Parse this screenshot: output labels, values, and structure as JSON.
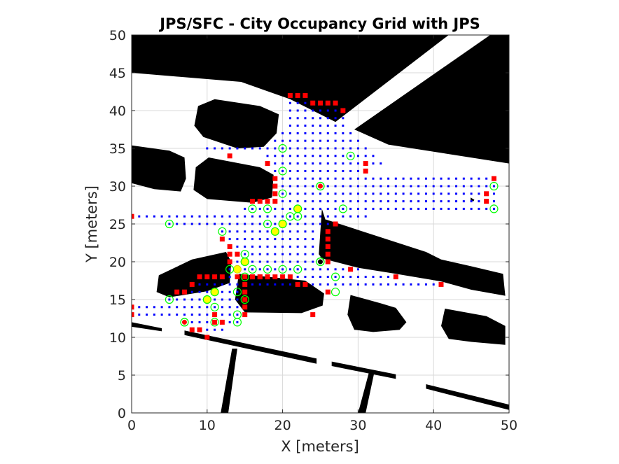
{
  "chart_data": {
    "type": "scatter",
    "title": "JPS/SFC - City Occupancy Grid with JPS",
    "xlabel": "X [meters]",
    "ylabel": "Y [meters]",
    "xlim": [
      0,
      50
    ],
    "ylim": [
      0,
      50
    ],
    "xticks": [
      0,
      10,
      20,
      30,
      40,
      50
    ],
    "yticks": [
      0,
      5,
      10,
      15,
      20,
      25,
      30,
      35,
      40,
      45,
      50
    ],
    "grid": true,
    "colors": {
      "obstacle": "#000000",
      "free": "#ffffff",
      "explored": "#0000ff",
      "frontier": "#ff0000",
      "jump_point": "#00ff00",
      "path": "#ffff00",
      "endpoint": "#ff0000"
    },
    "obstacles": [
      [
        [
          0,
          45
        ],
        [
          14.5,
          43.8
        ],
        [
          21,
          41.5
        ],
        [
          27,
          38.5
        ],
        [
          42,
          50
        ],
        [
          0,
          50
        ]
      ],
      [
        [
          29.5,
          37.5
        ],
        [
          47.5,
          50
        ],
        [
          50,
          50
        ],
        [
          50,
          50
        ],
        [
          50,
          33
        ],
        [
          34,
          35.5
        ]
      ],
      [
        [
          0,
          35.4
        ],
        [
          5,
          34.7
        ],
        [
          7,
          33.8
        ],
        [
          7.2,
          31
        ],
        [
          6.5,
          29.3
        ],
        [
          3,
          29.6
        ],
        [
          0,
          30.4
        ]
      ],
      [
        [
          8.8,
          40.6
        ],
        [
          11,
          41.5
        ],
        [
          17,
          40.6
        ],
        [
          19.5,
          39.5
        ],
        [
          19.2,
          37
        ],
        [
          17.5,
          35.2
        ],
        [
          14,
          35
        ],
        [
          9.5,
          36.5
        ],
        [
          8.3,
          38
        ]
      ],
      [
        [
          8.5,
          32.5
        ],
        [
          10.2,
          33.8
        ],
        [
          17,
          32.5
        ],
        [
          18.8,
          31.5
        ],
        [
          18.6,
          28.5
        ],
        [
          16,
          27.8
        ],
        [
          10,
          28.3
        ],
        [
          8.2,
          29.5
        ]
      ],
      [
        [
          3.6,
          18.2
        ],
        [
          8,
          20.3
        ],
        [
          12.5,
          21.3
        ],
        [
          13.2,
          20
        ],
        [
          13,
          17.2
        ],
        [
          10,
          16.1
        ],
        [
          5,
          15.3
        ],
        [
          3.3,
          16
        ]
      ],
      [
        [
          25.7,
          25.6
        ],
        [
          39,
          21.3
        ],
        [
          41,
          20.3
        ],
        [
          45,
          19.4
        ],
        [
          49.2,
          18.4
        ],
        [
          49.5,
          15.5
        ],
        [
          45,
          16.3
        ],
        [
          41,
          17.4
        ],
        [
          35,
          18.4
        ],
        [
          30,
          19.2
        ],
        [
          25,
          20.5
        ]
      ],
      [
        [
          14.2,
          18.4
        ],
        [
          23,
          17.5
        ],
        [
          25.5,
          15.8
        ],
        [
          25.3,
          14.2
        ],
        [
          22.5,
          13.2
        ],
        [
          15,
          13.3
        ],
        [
          13.7,
          15
        ]
      ],
      [
        [
          29,
          15.6
        ],
        [
          33,
          14.5
        ],
        [
          35,
          13.9
        ],
        [
          36.4,
          12
        ],
        [
          35.5,
          11
        ],
        [
          32,
          10.7
        ],
        [
          29.5,
          11
        ],
        [
          28.6,
          13
        ]
      ],
      [
        [
          41.5,
          13.8
        ],
        [
          47,
          12.8
        ],
        [
          49.5,
          11.5
        ],
        [
          49.5,
          9
        ],
        [
          45,
          9.4
        ],
        [
          42,
          9.8
        ],
        [
          41,
          11.5
        ]
      ],
      [
        [
          0,
          12
        ],
        [
          4,
          11.2
        ],
        [
          4,
          10.8
        ],
        [
          0,
          11.4
        ]
      ],
      [
        [
          7,
          10.9
        ],
        [
          24.5,
          7.2
        ],
        [
          24.5,
          6.5
        ],
        [
          7,
          10.3
        ]
      ],
      [
        [
          26.5,
          6.8
        ],
        [
          35,
          5.1
        ],
        [
          35,
          4.5
        ],
        [
          26.5,
          6.2
        ]
      ],
      [
        [
          39,
          3.8
        ],
        [
          50,
          1.1
        ],
        [
          50,
          0.4
        ],
        [
          39,
          3.2
        ]
      ],
      [
        [
          13.3,
          8.5
        ],
        [
          14,
          8.5
        ],
        [
          12.8,
          0
        ],
        [
          11.8,
          0
        ]
      ],
      [
        [
          31.5,
          5.6
        ],
        [
          32.2,
          5.6
        ],
        [
          31,
          0
        ],
        [
          30,
          0
        ]
      ],
      [
        [
          25.2,
          27
        ],
        [
          25.7,
          25.5
        ],
        [
          25.5,
          20
        ],
        [
          24.8,
          21
        ]
      ],
      [
        [
          44.9,
          28.5
        ],
        [
          45.4,
          28.2
        ],
        [
          45.3,
          28
        ],
        [
          44.9,
          28.1
        ]
      ]
    ],
    "explored_rows": [
      {
        "y": 41,
        "x0": 21,
        "x1": 26
      },
      {
        "y": 40,
        "x0": 21,
        "x1": 28
      },
      {
        "y": 39,
        "x0": 21,
        "x1": 28
      },
      {
        "y": 38,
        "x0": 21,
        "x1": 28
      },
      {
        "y": 37,
        "x0": 20,
        "x1": 29
      },
      {
        "y": 36,
        "x0": 19,
        "x1": 30
      },
      {
        "y": 35,
        "x0": 10,
        "x1": 31
      },
      {
        "y": 34,
        "x0": 18,
        "x1": 32
      },
      {
        "y": 33,
        "x0": 18,
        "x1": 33
      },
      {
        "y": 32,
        "x0": 19,
        "x1": 30
      },
      {
        "y": 31,
        "x0": 19,
        "x1": 48
      },
      {
        "y": 30,
        "x0": 19,
        "x1": 48
      },
      {
        "y": 29,
        "x0": 19,
        "x1": 48
      },
      {
        "y": 28,
        "x0": 19,
        "x1": 48
      },
      {
        "y": 27,
        "x0": 15,
        "x1": 48
      },
      {
        "y": 26,
        "x0": 0,
        "x1": 31
      },
      {
        "y": 25,
        "x0": 5,
        "x1": 26
      },
      {
        "y": 24,
        "x0": 12,
        "x1": 24
      },
      {
        "y": 23,
        "x0": 12,
        "x1": 24
      },
      {
        "y": 22,
        "x0": 13,
        "x1": 24
      },
      {
        "y": 21,
        "x0": 14,
        "x1": 24
      },
      {
        "y": 20,
        "x0": 14,
        "x1": 25
      },
      {
        "y": 19,
        "x0": 13,
        "x1": 30
      },
      {
        "y": 18,
        "x0": 9,
        "x1": 35
      },
      {
        "y": 17,
        "x0": 8,
        "x1": 40
      },
      {
        "y": 16,
        "x0": 6,
        "x1": 14
      },
      {
        "y": 15,
        "x0": 5,
        "x1": 14
      },
      {
        "y": 14,
        "x0": 0,
        "x1": 15
      },
      {
        "y": 13,
        "x0": 0,
        "x1": 15
      },
      {
        "y": 12,
        "x0": 7,
        "x1": 14
      },
      {
        "y": 11,
        "x0": 8,
        "x1": 12
      }
    ],
    "frontier": [
      [
        21,
        42
      ],
      [
        22,
        42
      ],
      [
        23,
        42
      ],
      [
        24,
        41
      ],
      [
        25,
        41
      ],
      [
        26,
        41
      ],
      [
        27,
        41
      ],
      [
        28,
        40
      ],
      [
        13,
        34
      ],
      [
        18,
        33
      ],
      [
        19,
        31
      ],
      [
        19,
        30
      ],
      [
        19,
        29
      ],
      [
        19,
        28
      ],
      [
        17,
        28
      ],
      [
        18,
        28
      ],
      [
        16,
        28
      ],
      [
        0,
        26
      ],
      [
        12,
        23
      ],
      [
        13,
        22
      ],
      [
        13,
        21
      ],
      [
        13,
        20
      ],
      [
        12,
        18
      ],
      [
        9,
        18
      ],
      [
        10,
        18
      ],
      [
        11,
        18
      ],
      [
        8,
        17
      ],
      [
        7,
        16
      ],
      [
        6,
        16
      ],
      [
        14,
        21
      ],
      [
        14,
        18
      ],
      [
        15,
        18
      ],
      [
        16,
        18
      ],
      [
        17,
        18
      ],
      [
        18,
        18
      ],
      [
        19,
        18
      ],
      [
        20,
        18
      ],
      [
        21,
        18
      ],
      [
        22,
        17
      ],
      [
        23,
        17
      ],
      [
        15,
        17
      ],
      [
        15,
        16
      ],
      [
        15,
        15
      ],
      [
        15,
        14
      ],
      [
        15,
        13
      ],
      [
        16,
        18
      ],
      [
        17,
        18
      ],
      [
        18,
        18
      ],
      [
        26,
        16
      ],
      [
        27,
        25
      ],
      [
        26,
        24
      ],
      [
        26,
        23
      ],
      [
        26,
        22
      ],
      [
        26,
        21
      ],
      [
        26,
        20
      ],
      [
        29,
        19
      ],
      [
        31,
        33
      ],
      [
        31,
        32
      ],
      [
        35,
        18
      ],
      [
        41,
        17
      ],
      [
        0,
        14
      ],
      [
        0,
        13
      ],
      [
        11,
        13
      ],
      [
        11,
        12
      ],
      [
        12,
        12
      ],
      [
        8,
        11
      ],
      [
        9,
        11
      ],
      [
        10,
        10
      ],
      [
        48,
        31
      ],
      [
        47,
        29
      ],
      [
        47,
        28
      ],
      [
        24,
        13
      ]
    ],
    "jump_points": [
      [
        20,
        35
      ],
      [
        29,
        34
      ],
      [
        20,
        32
      ],
      [
        20,
        29
      ],
      [
        48,
        30
      ],
      [
        48,
        27
      ],
      [
        25,
        30
      ],
      [
        16,
        27
      ],
      [
        18,
        27
      ],
      [
        22,
        27
      ],
      [
        28,
        27
      ],
      [
        21,
        26
      ],
      [
        22,
        26
      ],
      [
        18,
        25
      ],
      [
        20,
        25
      ],
      [
        12,
        24
      ],
      [
        19,
        24
      ],
      [
        5,
        25
      ],
      [
        15,
        21
      ],
      [
        15,
        20
      ],
      [
        13,
        19
      ],
      [
        16,
        19
      ],
      [
        18,
        19
      ],
      [
        20,
        19
      ],
      [
        22,
        19
      ],
      [
        15,
        18
      ],
      [
        27,
        18
      ],
      [
        25,
        20
      ],
      [
        11,
        16
      ],
      [
        14,
        16
      ],
      [
        27,
        16
      ],
      [
        5,
        15
      ],
      [
        10,
        15
      ],
      [
        15,
        15
      ],
      [
        11,
        14
      ],
      [
        14,
        13
      ],
      [
        11,
        12
      ],
      [
        14,
        12
      ],
      [
        7,
        12
      ]
    ],
    "path": [
      [
        22,
        27
      ],
      [
        20,
        25
      ],
      [
        19,
        24
      ],
      [
        15,
        20
      ],
      [
        14,
        19
      ],
      [
        11,
        16
      ],
      [
        10,
        15
      ]
    ],
    "start": [
      7,
      12
    ],
    "goal": [
      25,
      30
    ],
    "goal2": [
      25,
      20
    ]
  }
}
